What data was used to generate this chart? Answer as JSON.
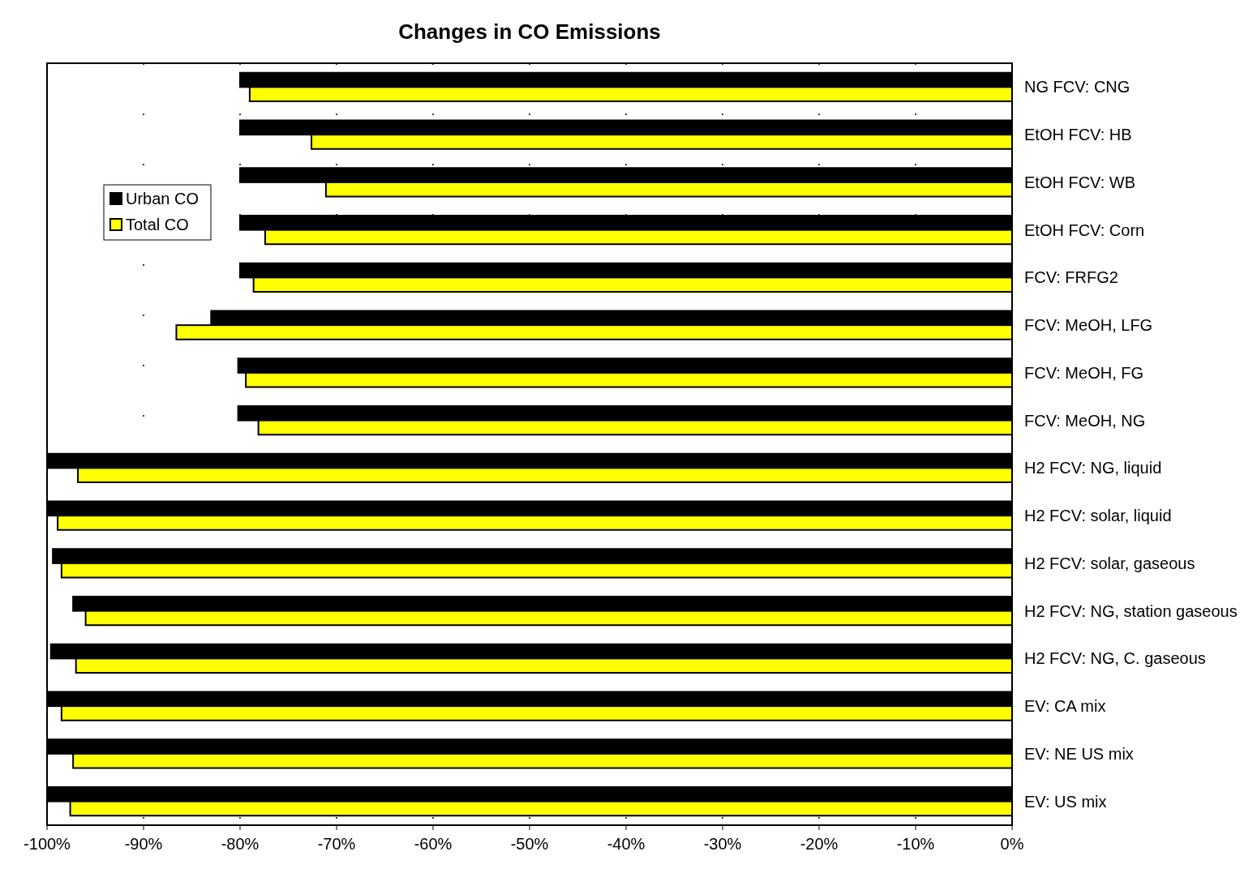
{
  "chart_data": {
    "type": "bar",
    "orientation": "horizontal",
    "title": "Changes in CO Emissions",
    "categories": [
      "NG FCV: CNG",
      "EtOH FCV: HB",
      "EtOH FCV: WB",
      "EtOH FCV: Corn",
      "FCV: FRFG2",
      "FCV: MeOH, LFG",
      "FCV: MeOH, FG",
      "FCV: MeOH, NG",
      "H2 FCV: NG, liquid",
      "H2 FCV: solar, liquid",
      "H2 FCV: solar, gaseous",
      "H2 FCV: NG, station gaseous",
      "H2 FCV: NG, C. gaseous",
      "EV: CA mix",
      "EV: NE US mix",
      "EV: US mix"
    ],
    "series": [
      {
        "name": "Urban CO",
        "color": "#000000",
        "values": [
          -80,
          -80,
          -80,
          -80,
          -80,
          -83,
          -80.2,
          -80.2,
          -100,
          -100,
          -99.4,
          -97.3,
          -99.6,
          -100,
          -100,
          -100
        ]
      },
      {
        "name": "Total CO",
        "color": "#ffff00",
        "values": [
          -79,
          -72.6,
          -71.1,
          -77.4,
          -78.6,
          -86.6,
          -79.4,
          -78.1,
          -96.8,
          -98.9,
          -98.5,
          -96,
          -97,
          -98.5,
          -97.3,
          -97.6
        ]
      }
    ],
    "xlim": [
      -100,
      0
    ],
    "xticks": [
      {
        "value": -100,
        "label": "-100%"
      },
      {
        "value": -90,
        "label": "-90%"
      },
      {
        "value": -80,
        "label": "-80%"
      },
      {
        "value": -70,
        "label": "-70%"
      },
      {
        "value": -60,
        "label": "-60%"
      },
      {
        "value": -50,
        "label": "-50%"
      },
      {
        "value": -40,
        "label": "-40%"
      },
      {
        "value": -30,
        "label": "-30%"
      },
      {
        "value": -20,
        "label": "-20%"
      },
      {
        "value": -10,
        "label": "-10%"
      },
      {
        "value": 0,
        "label": "0%"
      }
    ],
    "grid": "x",
    "legend": "top left"
  }
}
